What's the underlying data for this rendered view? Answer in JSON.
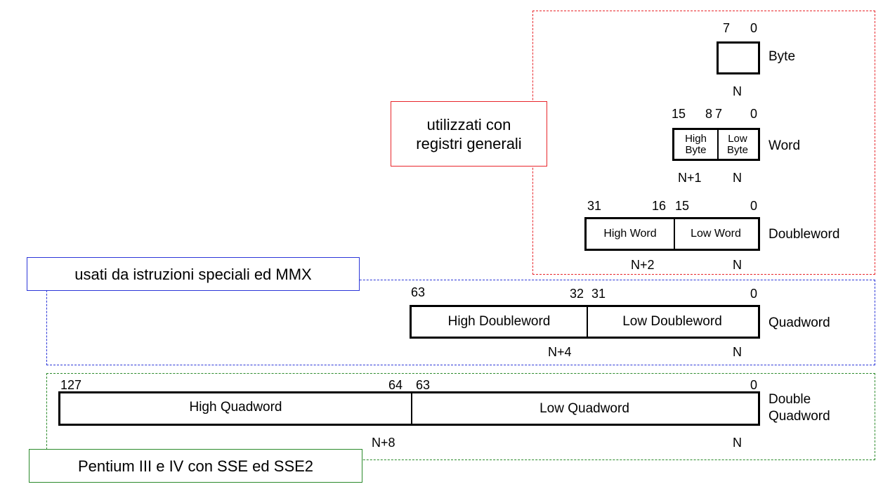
{
  "regions": {
    "general": {
      "color": "#e8262b",
      "note": [
        "utilizzati con",
        "registri generali"
      ]
    },
    "mmx": {
      "color": "#2b36d8",
      "note": [
        "usati da istruzioni speciali ed MMX"
      ]
    },
    "sse": {
      "color": "#2a8a2a",
      "note": [
        "Pentium III e IV con SSE ed SSE2"
      ]
    }
  },
  "byte": {
    "bits": [
      "7",
      "0"
    ],
    "name": "Byte",
    "addr": [
      "N"
    ]
  },
  "word": {
    "bits": [
      "15",
      "8",
      "7",
      "0"
    ],
    "cells": [
      [
        "High",
        "Byte"
      ],
      [
        "Low",
        "Byte"
      ]
    ],
    "name": "Word",
    "addr": [
      "N+1",
      "N"
    ]
  },
  "doubleword": {
    "bits": [
      "31",
      "16",
      "15",
      "0"
    ],
    "cells": [
      "High Word",
      "Low Word"
    ],
    "name": "Doubleword",
    "addr": [
      "N+2",
      "N"
    ]
  },
  "quadword": {
    "bits": [
      "63",
      "32",
      "31",
      "0"
    ],
    "cells": [
      "High Doubleword",
      "Low Doubleword"
    ],
    "name": "Quadword",
    "addr": [
      "N+4",
      "N"
    ]
  },
  "double_quadword": {
    "bits": [
      "127",
      "64",
      "63",
      "0"
    ],
    "cells": [
      "High Quadword",
      "Low Quadword"
    ],
    "name": [
      "Double",
      "Quadword"
    ],
    "addr": [
      "N+8",
      "N"
    ]
  }
}
